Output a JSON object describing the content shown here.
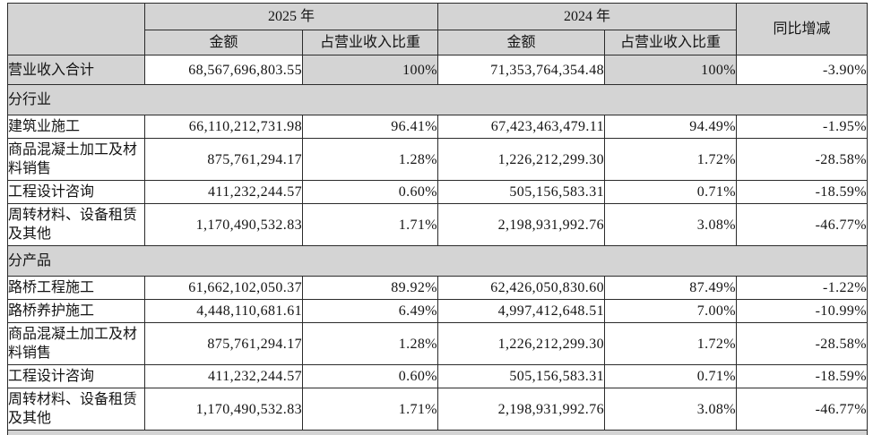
{
  "table": {
    "header": {
      "corner": "",
      "year_2025": "2025 年",
      "year_2024": "2024 年",
      "yoy": "同比增减",
      "sub_headers": [
        "金额",
        "占营业收入比重",
        "金额",
        "占营业收入比重"
      ]
    },
    "rows": [
      {
        "type": "total",
        "shaded": true,
        "label": "营业收入合计",
        "amount_2025": "68,567,696,803.55",
        "pct_2025": "100%",
        "amount_2024": "71,353,764,354.48",
        "pct_2024": "100%",
        "change": "-3.90%"
      },
      {
        "type": "section",
        "label": "分行业"
      },
      {
        "type": "data",
        "label": "建筑业施工",
        "amount_2025": "66,110,212,731.98",
        "pct_2025": "96.41%",
        "amount_2024": "67,423,463,479.11",
        "pct_2024": "94.49%",
        "change": "-1.95%"
      },
      {
        "type": "data",
        "label": "商品混凝土加工及材料销售",
        "amount_2025": "875,761,294.17",
        "pct_2025": "1.28%",
        "amount_2024": "1,226,212,299.30",
        "pct_2024": "1.72%",
        "change": "-28.58%"
      },
      {
        "type": "data",
        "label": "工程设计咨询",
        "amount_2025": "411,232,244.57",
        "pct_2025": "0.60%",
        "amount_2024": "505,156,583.31",
        "pct_2024": "0.71%",
        "change": "-18.59%"
      },
      {
        "type": "data",
        "label": "周转材料、设备租赁及其他",
        "amount_2025": "1,170,490,532.83",
        "pct_2025": "1.71%",
        "amount_2024": "2,198,931,992.76",
        "pct_2024": "3.08%",
        "change": "-46.77%"
      },
      {
        "type": "section",
        "label": "分产品"
      },
      {
        "type": "data",
        "label": "路桥工程施工",
        "amount_2025": "61,662,102,050.37",
        "pct_2025": "89.92%",
        "amount_2024": "62,426,050,830.60",
        "pct_2024": "87.49%",
        "change": "-1.22%"
      },
      {
        "type": "data",
        "label": "路桥养护施工",
        "amount_2025": "4,448,110,681.61",
        "pct_2025": "6.49%",
        "amount_2024": "4,997,412,648.51",
        "pct_2024": "7.00%",
        "change": "-10.99%"
      },
      {
        "type": "data",
        "label": "商品混凝土加工及材料销售",
        "amount_2025": "875,761,294.17",
        "pct_2025": "1.28%",
        "amount_2024": "1,226,212,299.30",
        "pct_2024": "1.72%",
        "change": "-28.58%"
      },
      {
        "type": "data",
        "label": "工程设计咨询",
        "amount_2025": "411,232,244.57",
        "pct_2025": "0.60%",
        "amount_2024": "505,156,583.31",
        "pct_2024": "0.71%",
        "change": "-18.59%"
      },
      {
        "type": "data",
        "label": "周转材料、设备租赁及其他",
        "amount_2025": "1,170,490,532.83",
        "pct_2025": "1.71%",
        "amount_2024": "2,198,931,992.76",
        "pct_2024": "3.08%",
        "change": "-46.77%"
      },
      {
        "type": "partial"
      }
    ],
    "colors": {
      "shade": "#d4d4d4",
      "border": "#2b2b2b",
      "text": "#141414",
      "page_bg": "#ffffff"
    }
  }
}
